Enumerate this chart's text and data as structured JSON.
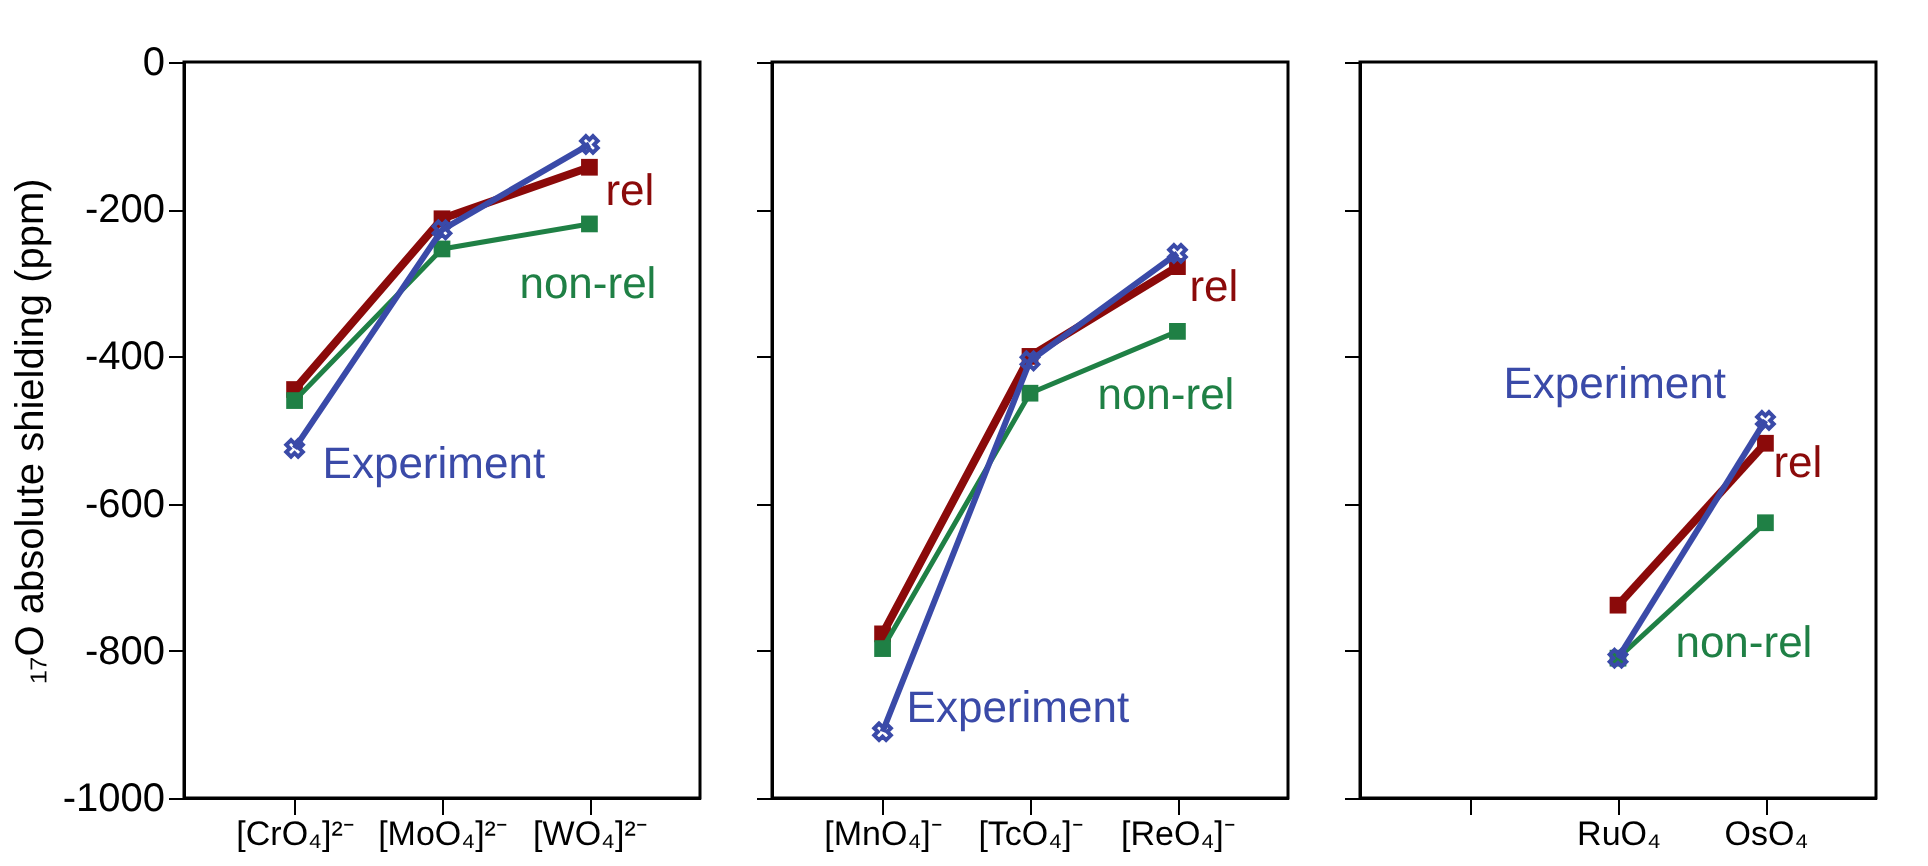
{
  "chart_data": [
    {
      "type": "line",
      "ylabel": "₁₇O absolute shielding (ppm)",
      "categories": [
        "[CrO₄]²⁻",
        "[MoO₄]²⁻",
        "[WO₄]²⁻"
      ],
      "ylim": [
        -1000,
        0
      ],
      "yticks": [
        -1000,
        -800,
        -600,
        -400,
        -200,
        0
      ],
      "grid": false,
      "series": [
        {
          "name": "rel",
          "color": "#8b0a0a",
          "marker": "square",
          "values": [
            -445,
            -213,
            -143
          ]
        },
        {
          "name": "non-rel",
          "color": "#1f8045",
          "marker": "square",
          "values": [
            -460,
            -254,
            -220
          ]
        },
        {
          "name": "Experiment",
          "color": "#3a4aa8",
          "marker": "cross",
          "values": [
            -525,
            -228,
            -112
          ]
        }
      ]
    },
    {
      "type": "line",
      "categories": [
        "[MnO₄]⁻",
        "[TcO₄]⁻",
        "[ReO₄]⁻"
      ],
      "ylim": [
        -1000,
        0
      ],
      "yticks": [
        -1000,
        -800,
        -600,
        -400,
        -200,
        0
      ],
      "tick_labels": "x",
      "grid": false,
      "series": [
        {
          "name": "rel",
          "color": "#8b0a0a",
          "marker": "square",
          "values": [
            -777,
            -400,
            -278
          ]
        },
        {
          "name": "non-rel",
          "color": "#1f8045",
          "marker": "square",
          "values": [
            -797,
            -450,
            -366
          ]
        },
        {
          "name": "Experiment",
          "color": "#3a4aa8",
          "marker": "cross",
          "values": [
            -910,
            -406,
            -260
          ]
        }
      ]
    },
    {
      "type": "line",
      "categories": [
        null,
        "RuO₄",
        "OsO₄"
      ],
      "ylim": [
        -1000,
        0
      ],
      "yticks": [
        -1000,
        -800,
        -600,
        -400,
        -200,
        0
      ],
      "tick_labels": "x",
      "grid": false,
      "series": [
        {
          "name": "rel",
          "color": "#8b0a0a",
          "marker": "square",
          "values": [
            null,
            -738,
            -518
          ]
        },
        {
          "name": "non-rel",
          "color": "#1f8045",
          "marker": "square",
          "values": [
            null,
            -810,
            -626
          ]
        },
        {
          "name": "Experiment",
          "color": "#3a4aa8",
          "marker": "cross",
          "values": [
            null,
            -810,
            -487
          ]
        }
      ]
    }
  ]
}
